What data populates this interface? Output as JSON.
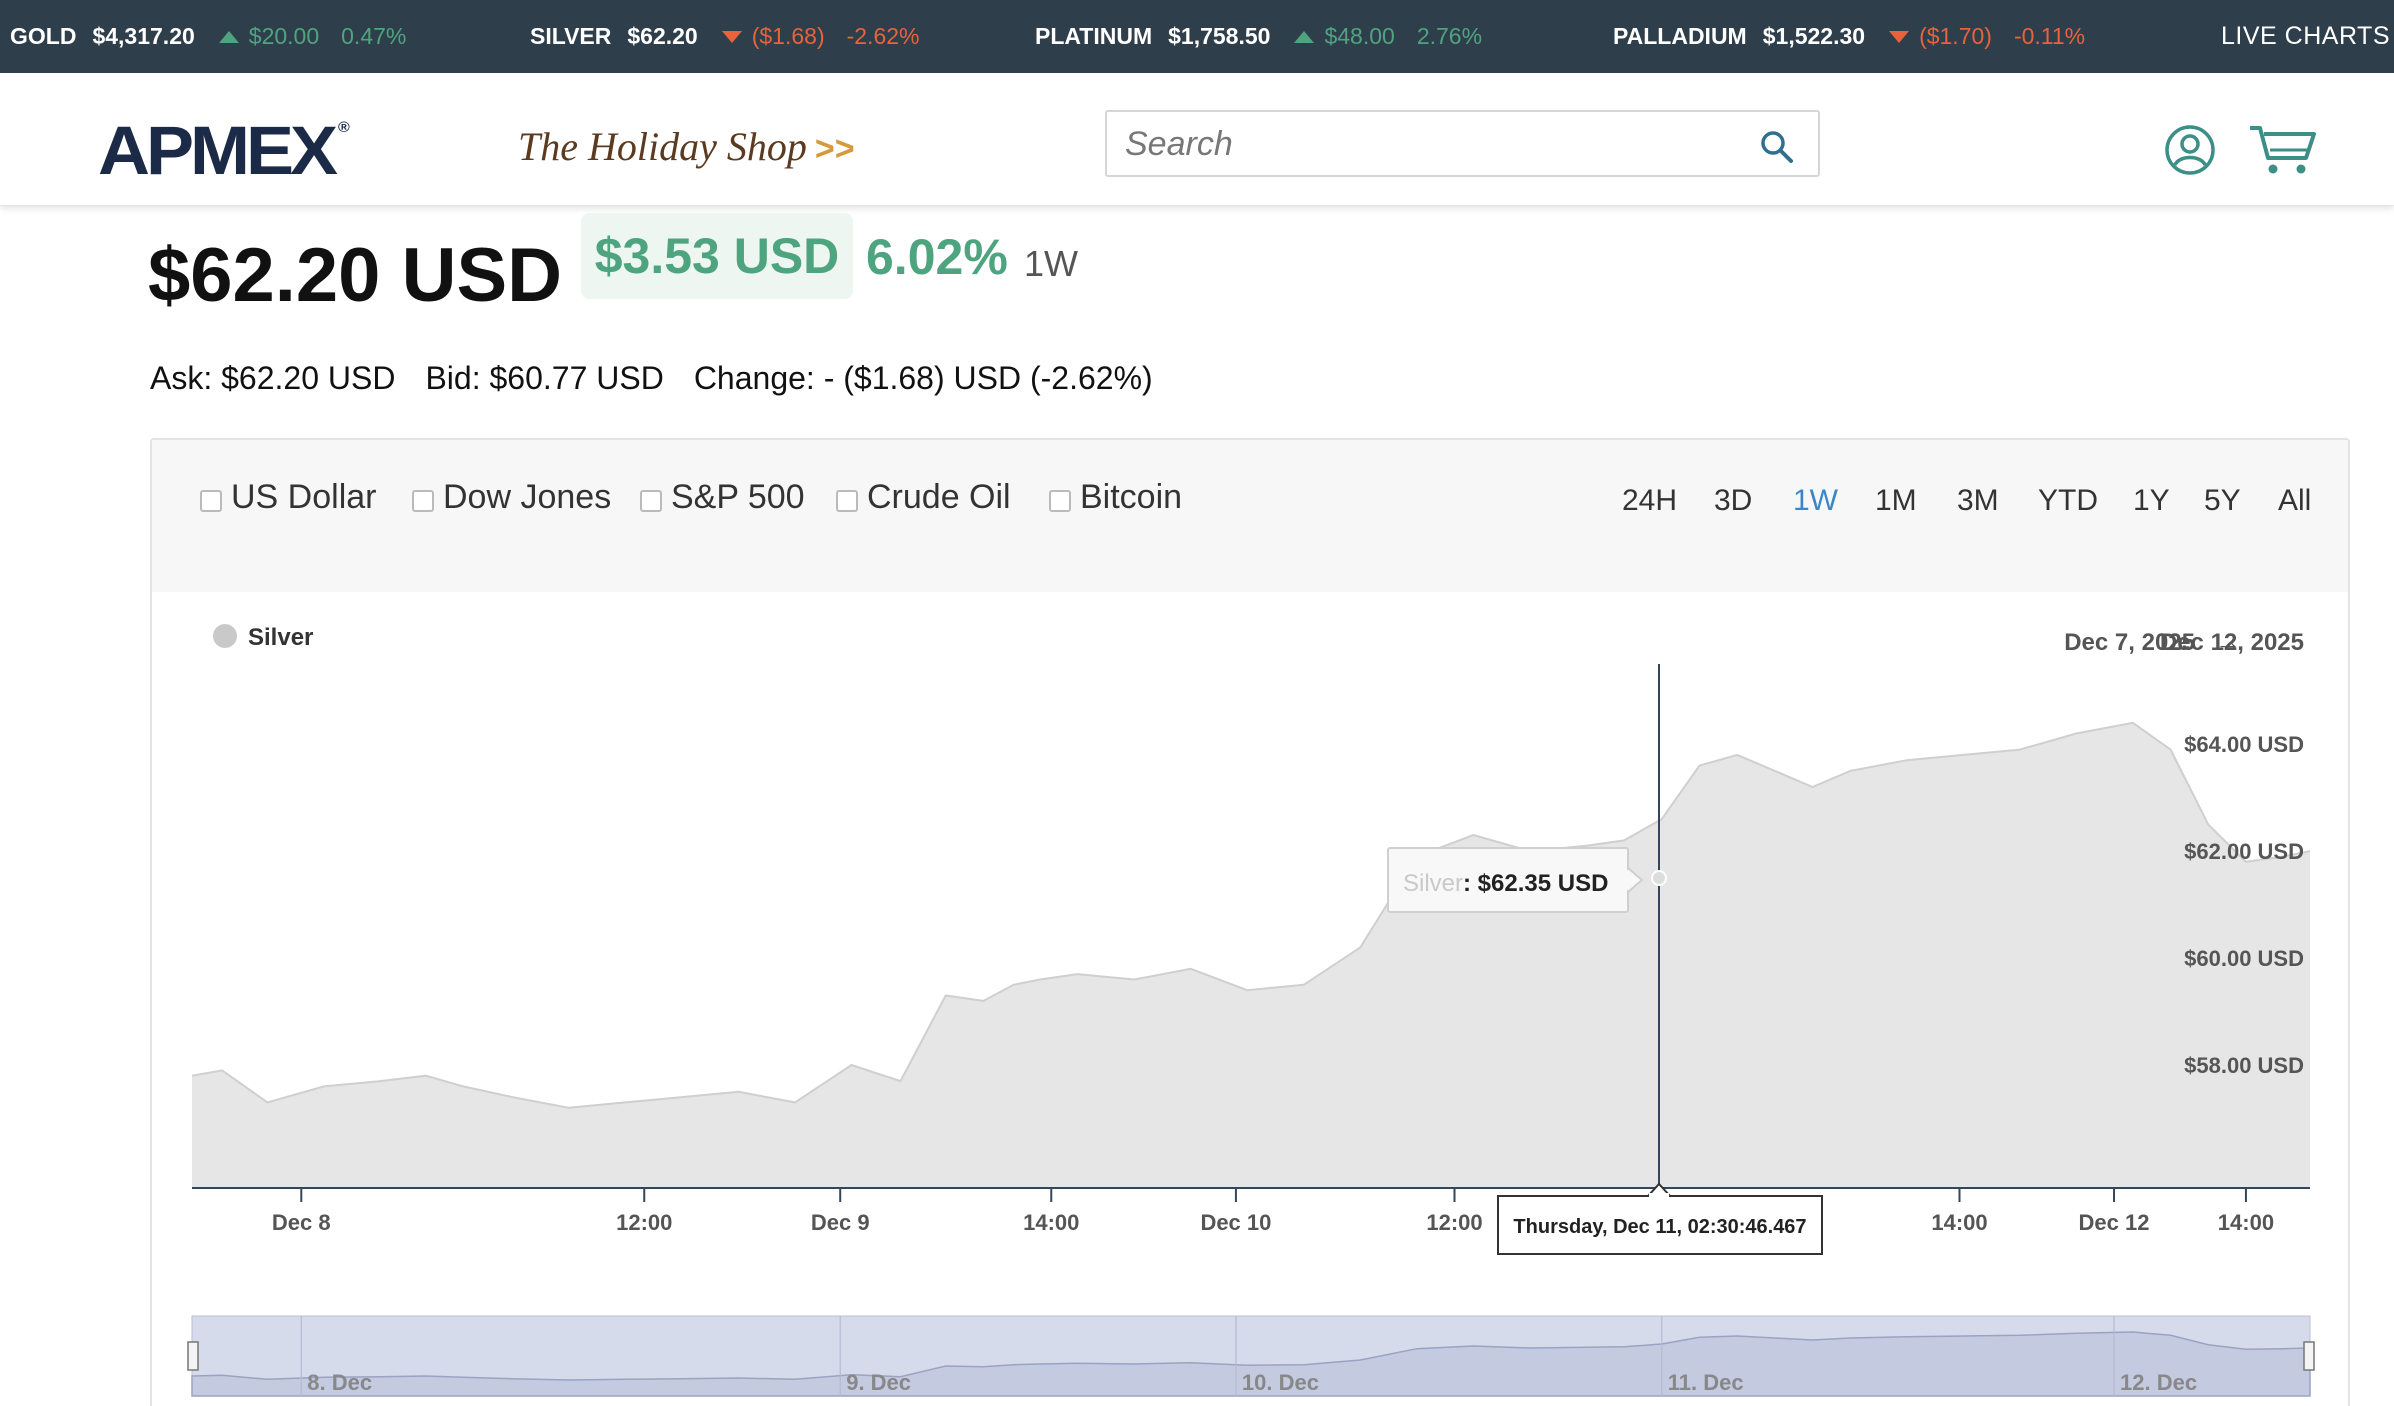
{
  "ticker": {
    "items": [
      {
        "name": "GOLD",
        "price": "$4,317.20",
        "change": "$20.00",
        "percent": "0.47%",
        "direction": "up"
      },
      {
        "name": "SILVER",
        "price": "$62.20",
        "change": "($1.68)",
        "percent": "-2.62%",
        "direction": "down"
      },
      {
        "name": "PLATINUM",
        "price": "$1,758.50",
        "change": "$48.00",
        "percent": "2.76%",
        "direction": "up"
      },
      {
        "name": "PALLADIUM",
        "price": "$1,522.30",
        "change": "($1.70)",
        "percent": "-0.11%",
        "direction": "down"
      }
    ],
    "live_charts": "LIVE CHARTS"
  },
  "header": {
    "logo": "APMEX",
    "logo_mark": "®",
    "holiday_shop": "The Holiday Shop",
    "holiday_arrows": ">>",
    "search_placeholder": "Search",
    "search_icon": "search-icon",
    "account_icon": "user-icon",
    "cart_icon": "cart-icon"
  },
  "price": {
    "current": "$62.20 USD",
    "change_amount": "$3.53 USD",
    "change_percent": "6.02%",
    "period": "1W",
    "ask": "Ask: $62.20 USD",
    "bid": "Bid: $60.77 USD",
    "change": "Change: - ($1.68) USD (-2.62%)"
  },
  "compare": [
    "US Dollar",
    "Dow Jones",
    "S&P 500",
    "Crude Oil",
    "Bitcoin"
  ],
  "ranges": [
    "24H",
    "3D",
    "1W",
    "1M",
    "3M",
    "YTD",
    "1Y",
    "5Y",
    "All"
  ],
  "active_range": "1W",
  "colors": {
    "up": "#4fa480",
    "down": "#e8623c",
    "accent": "#3a86c8",
    "ticker_bg": "#2f3e4b"
  },
  "chart_data": {
    "type": "area",
    "series": [
      {
        "name": "Silver",
        "x_days": [
          0,
          0.08,
          0.2,
          0.35,
          0.5,
          0.62,
          0.72,
          0.85,
          1.0,
          1.15,
          1.3,
          1.45,
          1.6,
          1.75,
          1.88,
          2.0,
          2.1,
          2.18,
          2.25,
          2.35,
          2.5,
          2.65,
          2.8,
          2.95,
          3.1,
          3.25,
          3.4,
          3.55,
          3.7,
          3.8,
          3.9,
          4.0,
          4.1,
          4.2,
          4.3,
          4.4,
          4.55,
          4.7,
          4.85,
          5.0,
          5.15,
          5.25,
          5.35,
          5.45,
          5.55,
          5.62
        ],
        "values": [
          57.8,
          57.9,
          57.3,
          57.6,
          57.7,
          57.8,
          57.6,
          57.4,
          57.2,
          57.3,
          57.4,
          57.5,
          57.3,
          58.0,
          57.7,
          59.3,
          59.2,
          59.5,
          59.6,
          59.7,
          59.6,
          59.8,
          59.4,
          59.5,
          60.2,
          61.9,
          62.3,
          62.0,
          62.1,
          62.2,
          62.6,
          63.6,
          63.8,
          63.5,
          63.2,
          63.5,
          63.7,
          63.8,
          63.9,
          64.2,
          64.4,
          63.9,
          62.5,
          61.8,
          61.9,
          62.0
        ]
      }
    ],
    "x_ticks": [
      "Dec 8",
      "12:00",
      "Dec 9",
      "14:00",
      "Dec 10",
      "12:00",
      "14:00",
      "Dec 12",
      "14:00"
    ],
    "y_ticks": [
      "$58.00 USD",
      "$60.00 USD",
      "$62.00 USD",
      "$64.00 USD"
    ],
    "ylim": [
      55.7,
      65.5
    ],
    "date_range": {
      "start": "Dec 7, 2025",
      "arrow": "→",
      "end": "Dec 12, 2025"
    },
    "tooltip": {
      "series": "Silver",
      "value": ": $62.35 USD",
      "time": "Thursday, Dec 11, 02:30:46.467"
    },
    "navigator_labels": [
      "8. Dec",
      "9. Dec",
      "10. Dec",
      "11. Dec",
      "12. Dec"
    ]
  }
}
